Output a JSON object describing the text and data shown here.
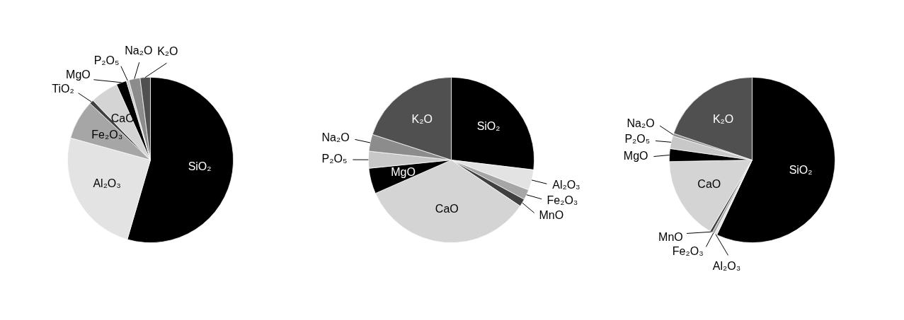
{
  "chart_data": [
    {
      "type": "pie",
      "categories": [
        "SiO₂",
        "Al₂O₃",
        "Fe₂O₃",
        "TiO₂",
        "CaO",
        "MgO",
        "P₂O₅",
        "Na₂O",
        "K₂O"
      ],
      "values": [
        54.5,
        24.8,
        7.7,
        0.8,
        5.5,
        2,
        0.5,
        2.2,
        2
      ],
      "colors": [
        "#000000",
        "#e3e3e3",
        "#a6a6a6",
        "#404040",
        "#d4d4d4",
        "#000000",
        "#c8c8c8",
        "#8c8c8c",
        "#505050"
      ]
    },
    {
      "type": "pie",
      "categories": [
        "SiO₂",
        "Al₂O₃",
        "Fe₂O₃",
        "MnO",
        "CaO",
        "MgO",
        "P₂O₅",
        "Na₂O",
        "K₂O"
      ],
      "values": [
        26.9,
        4,
        2,
        1.5,
        34,
        5,
        3.3,
        3.3,
        20
      ],
      "colors": [
        "#000000",
        "#e3e3e3",
        "#a6a6a6",
        "#404040",
        "#d4d4d4",
        "#000000",
        "#c8c8c8",
        "#8c8c8c",
        "#505050"
      ]
    },
    {
      "type": "pie",
      "categories": [
        "SiO₂",
        "Al₂O₃",
        "Fe₂O₃",
        "MnO",
        "CaO",
        "MgO",
        "P₂O₅",
        "Na₂O",
        "K₂O"
      ],
      "values": [
        57,
        0.5,
        0.5,
        0.5,
        16.2,
        2.5,
        2.5,
        0.5,
        19.8
      ],
      "colors": [
        "#000000",
        "#e3e3e3",
        "#a6a6a6",
        "#404040",
        "#d4d4d4",
        "#000000",
        "#c8c8c8",
        "#8c8c8c",
        "#505050"
      ]
    }
  ]
}
